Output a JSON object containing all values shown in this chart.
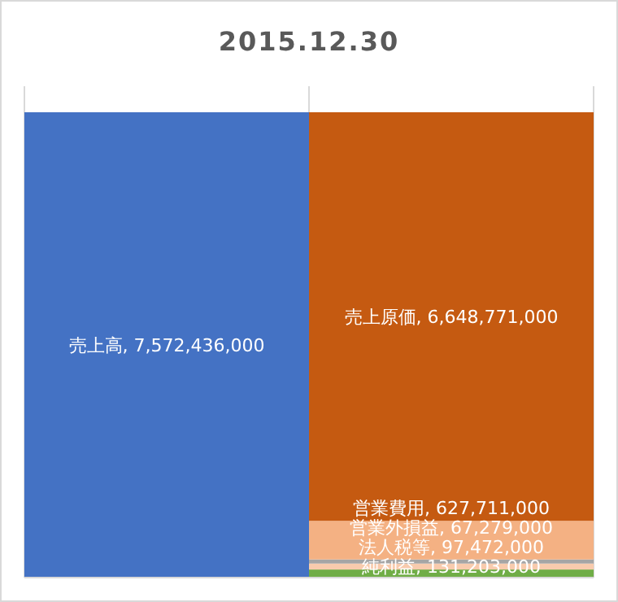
{
  "chart_data": {
    "type": "bar",
    "title": "2015.12.30",
    "stacked": true,
    "grid": "x",
    "legend": false,
    "categories": [
      null,
      null
    ],
    "series": [
      {
        "color": "#4472c4",
        "values": [
          7572436000,
          null
        ],
        "value_labels": [
          "売上高, 7,572,436,000",
          null
        ]
      },
      {
        "color": "#70ad47",
        "values": [
          null,
          131203000
        ],
        "value_labels": [
          null,
          "純利益, 131,203,000"
        ]
      },
      {
        "color": "#f8cbad",
        "values": [
          null,
          97472000
        ],
        "value_labels": [
          null,
          "法人税等, 97,472,000"
        ]
      },
      {
        "color": "#a5a5a5",
        "values": [
          null,
          67279000
        ],
        "value_labels": [
          null,
          "営業外損益, 67,279,000"
        ]
      },
      {
        "color": "#f4b183",
        "values": [
          null,
          627711000
        ],
        "value_labels": [
          null,
          "営業費用, 627,711,000"
        ]
      },
      {
        "color": "#c55a11",
        "values": [
          null,
          6648771000
        ],
        "value_labels": [
          null,
          "売上原価, 6,648,771,000"
        ]
      }
    ]
  }
}
